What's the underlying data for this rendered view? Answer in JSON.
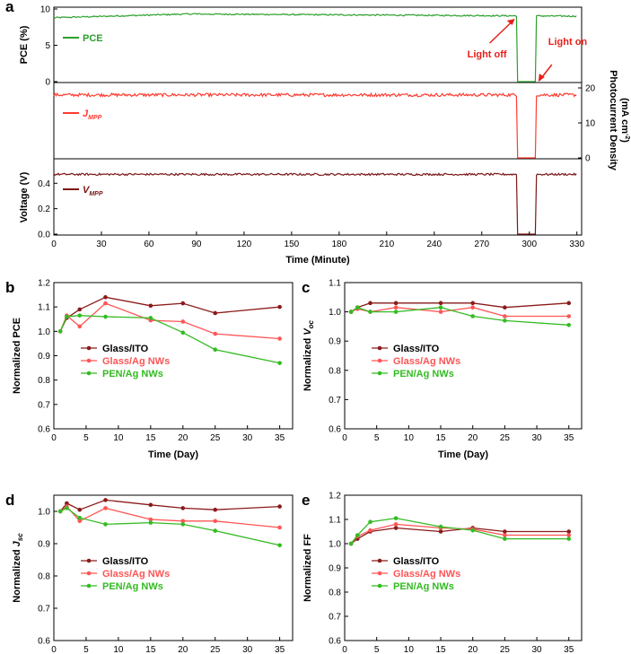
{
  "colors": {
    "pce": "#2ca02c",
    "jmpp": "#ff3b30",
    "vmpp": "#7b1616",
    "ito": "#8b1a1a",
    "agnw": "#ff5555",
    "pen": "#33bb22",
    "annot": "#e8201a"
  },
  "chart_data": [
    {
      "id": "a",
      "panel_label": "a",
      "type": "line",
      "xlabel": "Time (Minute)",
      "x_ticks": [
        "0",
        "30",
        "60",
        "90",
        "120",
        "150",
        "180",
        "210",
        "240",
        "270",
        "300",
        "330"
      ],
      "xlim": [
        0,
        333
      ],
      "light_off_minute": 292,
      "light_on_minute": 304,
      "annotations": {
        "light_off": "Light off",
        "light_on": "Light on"
      },
      "subplots": [
        {
          "name": "PCE",
          "legend": "PCE",
          "ylabel": "PCE (%)",
          "ylim": [
            0,
            10
          ],
          "y_ticks": [
            "0",
            "5",
            "10"
          ],
          "baseline": 9.0
        },
        {
          "name": "J_MPP",
          "legend_main": "J",
          "legend_sub": "MPP",
          "ylabel_right_1": "Photocurrent Density",
          "ylabel_right_2": "(mA cm",
          "ylabel_right_sup": "-2",
          "ylabel_right_3": ")",
          "ylim": [
            0,
            20
          ],
          "y_ticks_right": [
            "0",
            "10",
            "20"
          ],
          "baseline": 18.0
        },
        {
          "name": "V_MPP",
          "legend_main": "V",
          "legend_sub": "MPP",
          "ylabel": "Voltage (V)",
          "ylim": [
            0,
            0.55
          ],
          "y_ticks": [
            "0.0",
            "0.2",
            "0.4"
          ],
          "baseline": 0.47
        }
      ]
    },
    {
      "id": "b",
      "panel_label": "b",
      "type": "line",
      "xlabel": "Time (Day)",
      "ylabel": "Normalized PCE",
      "x_ticks": [
        "0",
        "5",
        "10",
        "15",
        "20",
        "25",
        "30",
        "35"
      ],
      "y_ticks": [
        "0.6",
        "0.7",
        "0.8",
        "0.9",
        "1.0",
        "1.1",
        "1.2"
      ],
      "xlim": [
        0,
        37
      ],
      "ylim": [
        0.6,
        1.2
      ],
      "x": [
        1,
        2,
        4,
        8,
        15,
        20,
        25,
        35
      ],
      "series": [
        {
          "name": "Glass/ITO",
          "values": [
            1.0,
            1.055,
            1.09,
            1.14,
            1.105,
            1.115,
            1.075,
            1.1
          ]
        },
        {
          "name": "Glass/Ag NWs",
          "values": [
            1.0,
            1.065,
            1.02,
            1.115,
            1.045,
            1.04,
            0.99,
            0.97
          ]
        },
        {
          "name": "PEN/Ag NWs",
          "values": [
            1.0,
            1.06,
            1.065,
            1.06,
            1.055,
            0.995,
            0.925,
            0.87
          ]
        }
      ]
    },
    {
      "id": "c",
      "panel_label": "c",
      "type": "line",
      "xlabel": "Time (Day)",
      "ylabel_main": "Normalized V",
      "ylabel_sub": "oc",
      "x_ticks": [
        "0",
        "5",
        "10",
        "15",
        "20",
        "25",
        "30",
        "35"
      ],
      "y_ticks": [
        "0.6",
        "0.7",
        "0.8",
        "0.9",
        "1.0",
        "1.1"
      ],
      "xlim": [
        0,
        37
      ],
      "ylim": [
        0.6,
        1.1
      ],
      "x": [
        1,
        2,
        4,
        8,
        15,
        20,
        25,
        35
      ],
      "series": [
        {
          "name": "Glass/ITO",
          "values": [
            1.0,
            1.015,
            1.03,
            1.03,
            1.03,
            1.03,
            1.015,
            1.03
          ]
        },
        {
          "name": "Glass/Ag NWs",
          "values": [
            1.0,
            1.01,
            1.0,
            1.015,
            1.0,
            1.015,
            0.985,
            0.985
          ]
        },
        {
          "name": "PEN/Ag NWs",
          "values": [
            1.0,
            1.015,
            1.0,
            1.0,
            1.015,
            0.985,
            0.97,
            0.955
          ]
        }
      ]
    },
    {
      "id": "d",
      "panel_label": "d",
      "type": "line",
      "xlabel": "Time (Day)",
      "ylabel_main": "Normalized J",
      "ylabel_sub": "sc",
      "x_ticks": [
        "0",
        "5",
        "10",
        "15",
        "20",
        "25",
        "30",
        "35"
      ],
      "y_ticks": [
        "0.6",
        "0.7",
        "0.8",
        "0.9",
        "1.0"
      ],
      "xlim": [
        0,
        37
      ],
      "ylim": [
        0.6,
        1.05
      ],
      "x": [
        1,
        2,
        4,
        8,
        15,
        20,
        25,
        35
      ],
      "series": [
        {
          "name": "Glass/ITO",
          "values": [
            1.0,
            1.025,
            1.005,
            1.035,
            1.02,
            1.01,
            1.005,
            1.015
          ]
        },
        {
          "name": "Glass/Ag NWs",
          "values": [
            1.0,
            1.015,
            0.97,
            1.01,
            0.975,
            0.97,
            0.97,
            0.95
          ]
        },
        {
          "name": "PEN/Ag NWs",
          "values": [
            1.0,
            1.01,
            0.98,
            0.96,
            0.965,
            0.96,
            0.94,
            0.895
          ]
        }
      ]
    },
    {
      "id": "e",
      "panel_label": "e",
      "type": "line",
      "xlabel": "Time (Day)",
      "ylabel": "Normalized FF",
      "x_ticks": [
        "0",
        "5",
        "10",
        "15",
        "20",
        "25",
        "30",
        "35"
      ],
      "y_ticks": [
        "0.6",
        "0.7",
        "0.8",
        "0.9",
        "1.0",
        "1.1",
        "1.2"
      ],
      "xlim": [
        0,
        37
      ],
      "ylim": [
        0.6,
        1.2
      ],
      "x": [
        1,
        2,
        4,
        8,
        15,
        20,
        25,
        35
      ],
      "series": [
        {
          "name": "Glass/ITO",
          "values": [
            1.0,
            1.02,
            1.05,
            1.065,
            1.05,
            1.065,
            1.05,
            1.05
          ]
        },
        {
          "name": "Glass/Ag NWs",
          "values": [
            1.0,
            1.03,
            1.055,
            1.08,
            1.065,
            1.06,
            1.035,
            1.035
          ]
        },
        {
          "name": "PEN/Ag NWs",
          "values": [
            1.0,
            1.035,
            1.09,
            1.105,
            1.07,
            1.055,
            1.02,
            1.02
          ]
        }
      ]
    }
  ]
}
